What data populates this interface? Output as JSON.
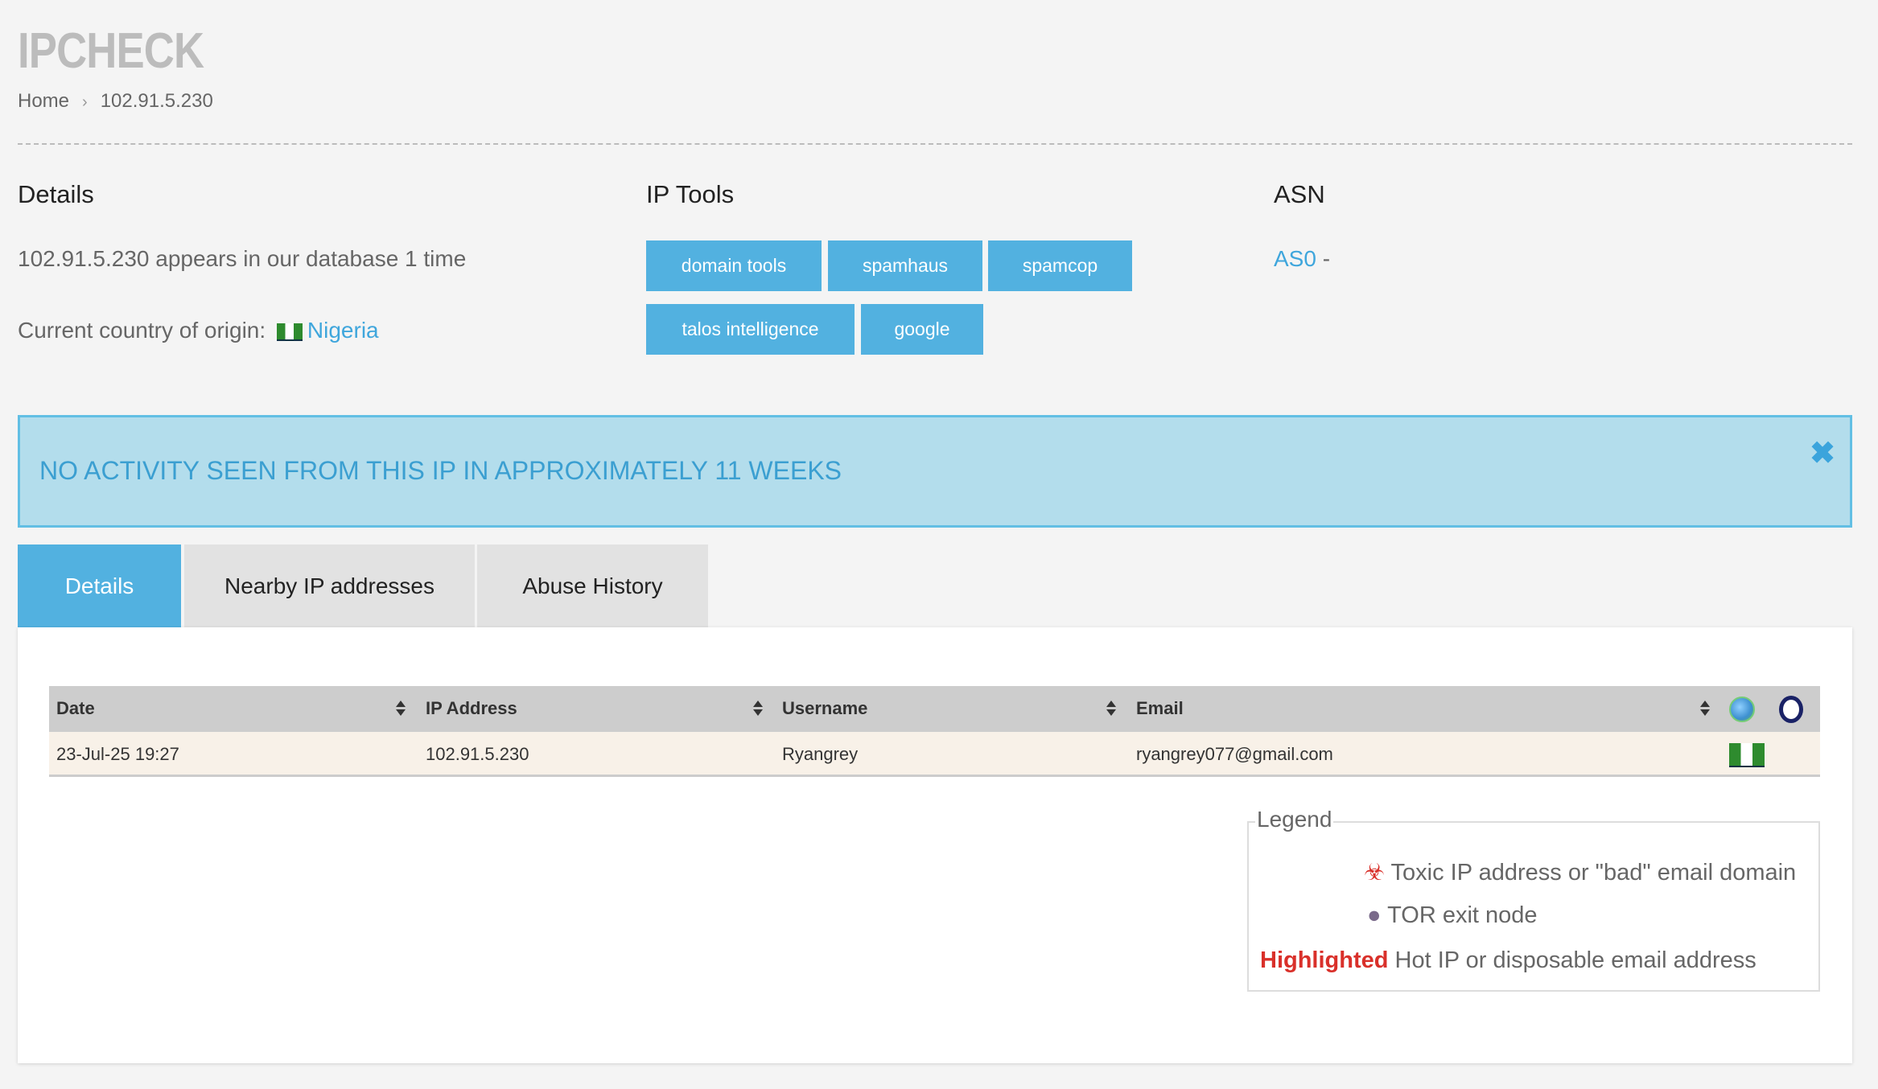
{
  "title": "IPCHECK",
  "breadcrumb": {
    "home": "Home",
    "current": "102.91.5.230"
  },
  "details": {
    "heading": "Details",
    "appears": "102.91.5.230 appears in our database 1 time",
    "country_label": "Current country of origin:",
    "country": "Nigeria"
  },
  "tools": {
    "heading": "IP Tools",
    "buttons": [
      "domain tools",
      "spamhaus",
      "spamcop",
      "talos intelligence",
      "google"
    ]
  },
  "asn": {
    "heading": "ASN",
    "value": "AS0",
    "suffix": "-"
  },
  "alert": {
    "text": "NO ACTIVITY SEEN FROM THIS IP IN APPROXIMATELY 11 WEEKS",
    "close": "✖"
  },
  "tabs": [
    "Details",
    "Nearby IP addresses",
    "Abuse History"
  ],
  "table": {
    "headers": [
      "Date",
      "IP Address",
      "Username",
      "Email"
    ],
    "header_icons": [
      "globe-icon",
      "hand-icon"
    ],
    "rows": [
      {
        "date": "23-Jul-25 19:27",
        "ip": "102.91.5.230",
        "username": "Ryangrey",
        "email": "ryangrey077@gmail.com",
        "country_flag": "Nigeria"
      }
    ]
  },
  "legend": {
    "title": "Legend",
    "toxic": "Toxic IP address or \"bad\" email domain",
    "tor": "TOR exit node",
    "highlighted": "Highlighted",
    "highlighted_desc": "Hot IP or disposable email address"
  },
  "colors": {
    "accent": "#52b1e0",
    "alert_bg": "#b3ddec",
    "highlight": "#d9302a"
  }
}
